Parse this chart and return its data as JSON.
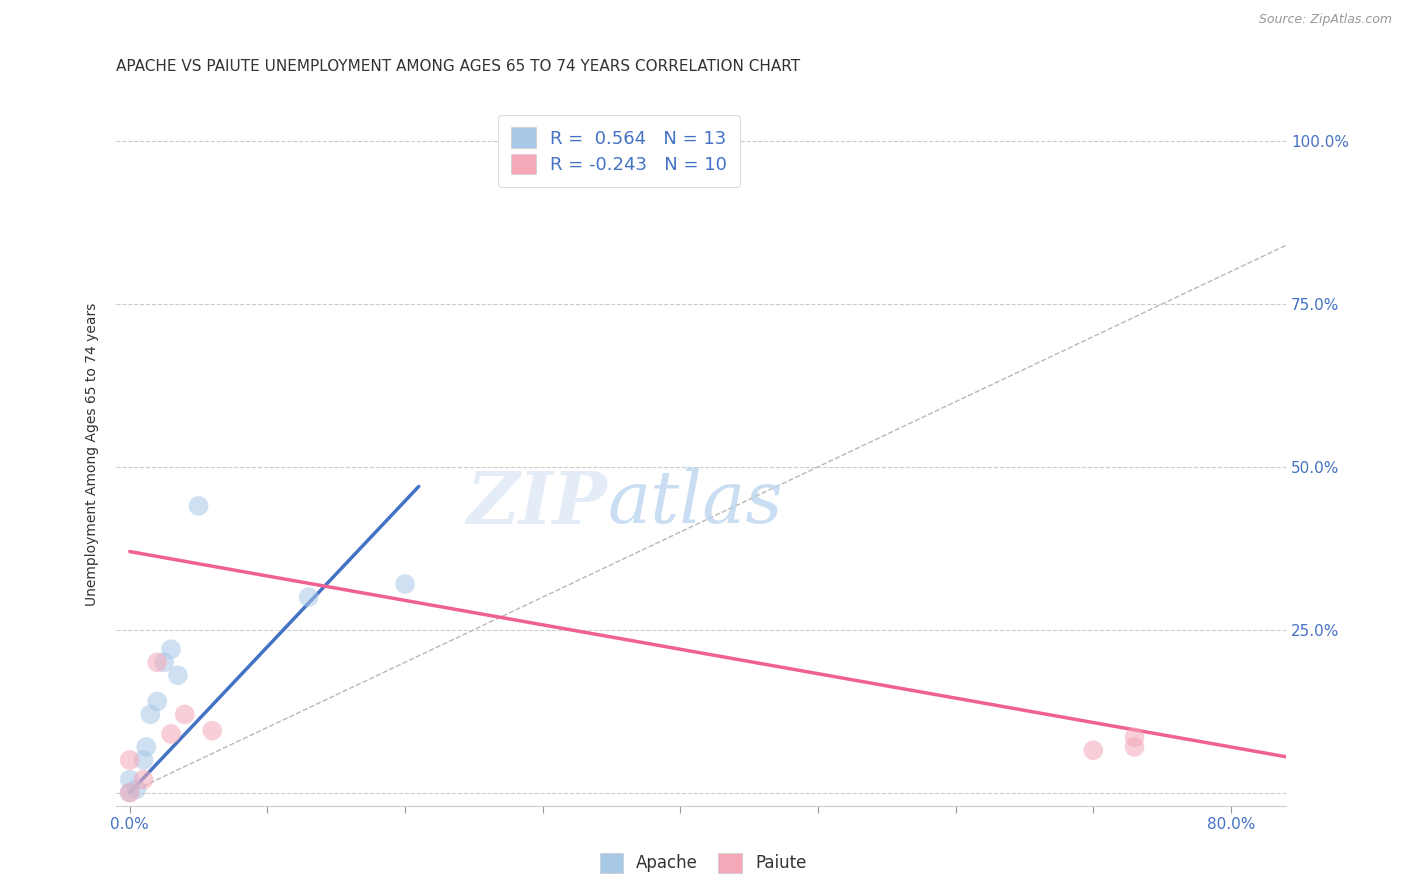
{
  "title": "APACHE VS PAIUTE UNEMPLOYMENT AMONG AGES 65 TO 74 YEARS CORRELATION CHART",
  "source": "Source: ZipAtlas.com",
  "xlabel_ticks": [
    0.0,
    0.1,
    0.2,
    0.3,
    0.4,
    0.5,
    0.6,
    0.7,
    0.8
  ],
  "xlabel_labels": [
    "0.0%",
    "",
    "",
    "",
    "",
    "",
    "",
    "",
    "80.0%"
  ],
  "ylabel_ticks": [
    0.0,
    0.25,
    0.5,
    0.75,
    1.0
  ],
  "ylabel_labels": [
    "",
    "25.0%",
    "50.0%",
    "75.0%",
    "100.0%"
  ],
  "xlim": [
    -0.01,
    0.84
  ],
  "ylim": [
    -0.02,
    1.06
  ],
  "ylabel": "Unemployment Among Ages 65 to 74 years",
  "apache_color": "#a8c8e8",
  "paiute_color": "#f4a8b8",
  "apache_line_color": "#4472c4",
  "paiute_line_color": "#f06090",
  "apache_R": 0.564,
  "apache_N": 13,
  "paiute_R": -0.243,
  "paiute_N": 10,
  "apache_scatter_x": [
    0.0,
    0.0,
    0.005,
    0.01,
    0.012,
    0.015,
    0.02,
    0.025,
    0.03,
    0.035,
    0.05,
    0.13,
    0.2
  ],
  "apache_scatter_y": [
    0.0,
    0.02,
    0.005,
    0.05,
    0.07,
    0.12,
    0.14,
    0.2,
    0.22,
    0.18,
    0.44,
    0.3,
    0.32
  ],
  "paiute_scatter_x": [
    0.0,
    0.0,
    0.01,
    0.02,
    0.03,
    0.04,
    0.06,
    0.7,
    0.73,
    0.73
  ],
  "paiute_scatter_y": [
    0.0,
    0.05,
    0.02,
    0.2,
    0.09,
    0.12,
    0.095,
    0.065,
    0.07,
    0.085
  ],
  "apache_trend_x": [
    0.0,
    0.21
  ],
  "apache_trend_y": [
    0.0,
    0.47
  ],
  "paiute_trend_x": [
    0.0,
    0.84
  ],
  "paiute_trend_y": [
    0.37,
    0.055
  ],
  "ref_line_x": [
    0.0,
    1.0
  ],
  "ref_line_y": [
    0.0,
    1.0
  ],
  "watermark_zip": "ZIP",
  "watermark_atlas": "atlas",
  "background_color": "#ffffff",
  "grid_color": "#cccccc",
  "title_fontsize": 11,
  "axis_label_fontsize": 10,
  "tick_fontsize": 11,
  "source_fontsize": 9,
  "legend_fontsize": 13,
  "scatter_size": 200,
  "scatter_alpha": 0.55
}
